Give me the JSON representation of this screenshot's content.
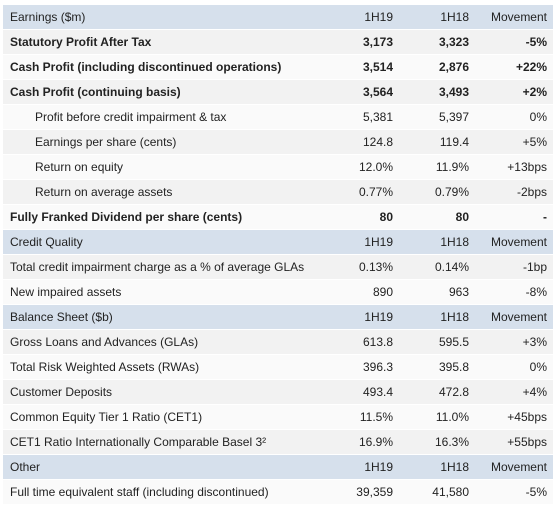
{
  "sections": [
    {
      "header": [
        "Earnings ($m)",
        "1H19",
        "1H18",
        "Movement"
      ],
      "rows": [
        [
          "Statutory Profit After Tax",
          "3,173",
          "3,323",
          "-5%"
        ],
        [
          "Cash Profit  (including discontinued operations)",
          "3,514",
          "2,876",
          "+22%"
        ],
        [
          "Cash Profit (continuing basis)",
          "3,564",
          "3,493",
          "+2%"
        ],
        [
          "Profit before credit impairment & tax",
          "5,381",
          "5,397",
          "0%"
        ],
        [
          "Earnings per share (cents)",
          "124.8",
          "119.4",
          "+5%"
        ],
        [
          "Return on equity",
          "12.0%",
          "11.9%",
          "+13bps"
        ],
        [
          "Return on average assets",
          "0.77%",
          "0.79%",
          "-2bps"
        ],
        [
          "Fully Franked Dividend per share (cents)",
          "80",
          "80",
          "-"
        ]
      ]
    },
    {
      "header": [
        "Credit Quality",
        "1H19",
        "1H18",
        "Movement"
      ],
      "rows": [
        [
          "Total credit impairment charge as a % of average GLAs",
          "0.13%",
          "0.14%",
          "-1bp"
        ],
        [
          "New impaired assets",
          "890",
          "963",
          "-8%"
        ]
      ]
    },
    {
      "header": [
        "Balance Sheet ($b)",
        "1H19",
        "1H18",
        "Movement"
      ],
      "rows": [
        [
          "Gross Loans and Advances (GLAs)",
          "613.8",
          "595.5",
          "+3%"
        ],
        [
          "Total Risk Weighted Assets (RWAs)",
          "396.3",
          "395.8",
          "0%"
        ],
        [
          "Customer Deposits",
          "493.4",
          "472.8",
          "+4%"
        ],
        [
          "Common Equity Tier 1 Ratio (CET1)",
          "11.5%",
          "11.0%",
          "+45bps"
        ],
        [
          "CET1 Ratio Internationally Comparable Basel 3²",
          "16.9%",
          "16.3%",
          "+55bps"
        ]
      ]
    },
    {
      "header": [
        "Other",
        "1H19",
        "1H18",
        "Movement"
      ],
      "rows": [
        [
          "Full time equivalent staff (including discontinued)",
          "39,359",
          "41,580",
          "-5%"
        ]
      ]
    }
  ]
}
